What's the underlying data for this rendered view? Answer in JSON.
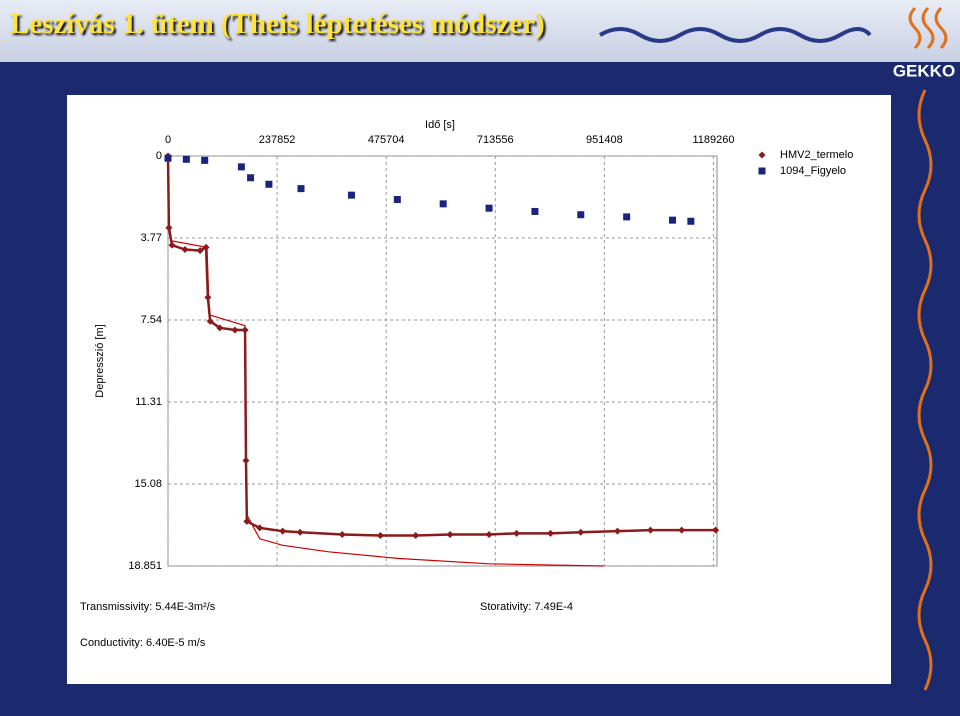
{
  "slide": {
    "title": "Leszívás 1. ütem (Theis léptetéses módszer)",
    "logo": "GEKKO"
  },
  "chart_data": {
    "type": "scatter",
    "x_label": "Idő [s]",
    "y_label": "Depresszió [m]",
    "xlim": [
      0,
      1197000
    ],
    "ylim": [
      0,
      18.851
    ],
    "y_inverted": true,
    "x_axis_position": "top",
    "xticks": [
      0,
      237852,
      475704,
      713556,
      951408,
      1189260
    ],
    "yticks": [
      0,
      3.77,
      7.54,
      11.31,
      15.08,
      18.851
    ],
    "grid": true,
    "legend": "top-right",
    "series": [
      {
        "name": "HMV2_termelo",
        "color": "#8b1a1a",
        "marker": "diamond",
        "connect": true,
        "x": [
          0,
          2000,
          8700,
          37000,
          70000,
          83000,
          87000,
          92000,
          113000,
          146000,
          168000,
          170000,
          172000,
          200000,
          250000,
          288000,
          380000,
          463000,
          540000,
          615000,
          700000,
          760000,
          834000,
          900000,
          980000,
          1052000,
          1120000,
          1194000
        ],
        "values": [
          0,
          3.3,
          4.1,
          4.3,
          4.35,
          4.2,
          6.5,
          7.6,
          7.9,
          8.0,
          8.0,
          14,
          16.8,
          17.1,
          17.25,
          17.3,
          17.4,
          17.45,
          17.45,
          17.4,
          17.4,
          17.35,
          17.35,
          17.3,
          17.25,
          17.2,
          17.2,
          17.2
        ]
      },
      {
        "name": "1094_Figyelo",
        "color": "#1a237e",
        "marker": "square",
        "connect": false,
        "x": [
          0,
          40000,
          80000,
          160000,
          180000,
          220000,
          290000,
          400000,
          500000,
          600000,
          700000,
          800000,
          900000,
          1000000,
          1100000,
          1140000
        ],
        "values": [
          0.1,
          0.15,
          0.2,
          0.5,
          1.0,
          1.3,
          1.5,
          1.8,
          2.0,
          2.2,
          2.4,
          2.55,
          2.7,
          2.8,
          2.95,
          3.0
        ]
      }
    ],
    "fit": {
      "color": "#cc0000",
      "x": [
        0,
        1000,
        8000,
        85000,
        90000,
        168000,
        172000,
        200000,
        250000,
        350000,
        500000,
        700000,
        950000
      ],
      "values": [
        0,
        3.0,
        3.9,
        4.2,
        7.3,
        7.8,
        16.5,
        17.6,
        17.9,
        18.2,
        18.5,
        18.75,
        18.85
      ]
    },
    "annotations": [
      "Transmissivity: 5.44E-3m²/s",
      "Storativity: 7.49E-4",
      "Conductivity: 6.40E-5 m/s"
    ]
  }
}
